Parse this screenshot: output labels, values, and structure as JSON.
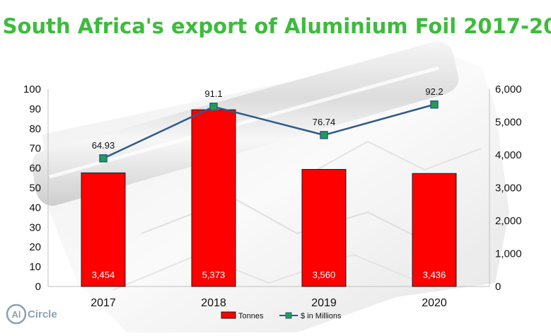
{
  "colors": {
    "title": "#3dbb3d",
    "bar": "#ff0000",
    "line": "#2e5a8a",
    "marker": "#1e9e4e",
    "logo": "#8fa0b2"
  },
  "logo": {
    "symbol": "Al",
    "name": "Circle"
  },
  "chart_data": {
    "type": "bar",
    "title": "South Africa's export of Aluminium Foil 2017-20",
    "categories": [
      "2017",
      "2018",
      "2019",
      "2020"
    ],
    "xlabel": "",
    "ylabel": "",
    "left_axis": {
      "min": 0,
      "max": 100,
      "step": 10
    },
    "right_axis": {
      "min": 0,
      "max": 6000,
      "step": 1000
    },
    "series": [
      {
        "name": "Tonnes",
        "type": "bar",
        "axis": "right",
        "values": [
          3454,
          5373,
          3560,
          3436
        ],
        "labels": [
          "3,454",
          "5,373",
          "3,560",
          "3,436"
        ]
      },
      {
        "name": "$ in Millions",
        "type": "line",
        "axis": "left",
        "values": [
          64.93,
          91.1,
          76.74,
          92.2
        ],
        "labels": [
          "64.93",
          "91.1",
          "76.74",
          "92.2"
        ]
      }
    ],
    "grid": false,
    "legend_position": "bottom"
  }
}
